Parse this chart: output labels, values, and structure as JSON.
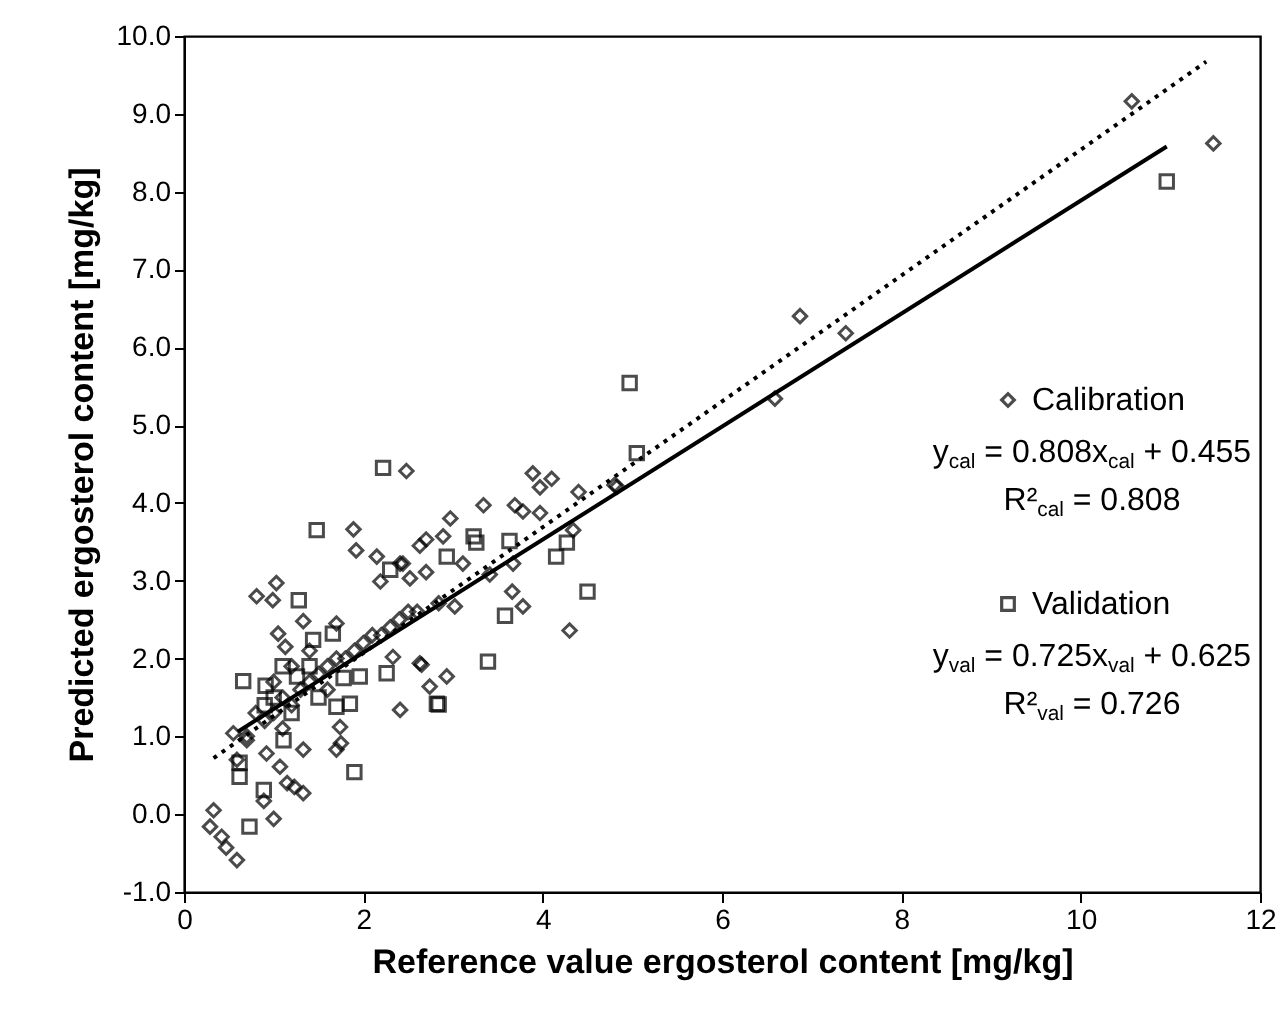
{
  "chart_data": {
    "type": "scatter",
    "xlabel": "Reference value ergosterol content [mg/kg]",
    "ylabel": "Predicted ergosterol content [mg/kg]",
    "xlim": [
      0,
      12
    ],
    "xticks": [
      0,
      2,
      4,
      6,
      8,
      10,
      12
    ],
    "ylim": [
      -1,
      10
    ],
    "yticks": [
      {
        "value": -1,
        "label": "-1.0"
      },
      {
        "value": 0,
        "label": "0.0"
      },
      {
        "value": 1,
        "label": "1.0"
      },
      {
        "value": 2,
        "label": "2.0"
      },
      {
        "value": 3,
        "label": "3.0"
      },
      {
        "value": 4,
        "label": "4.0"
      },
      {
        "value": 5,
        "label": "5.0"
      },
      {
        "value": 6,
        "label": "6.0"
      },
      {
        "value": 7,
        "label": "7.0"
      },
      {
        "value": 8,
        "label": "8.0"
      },
      {
        "value": 9,
        "label": "9.0"
      },
      {
        "value": 10,
        "label": "10.0"
      }
    ],
    "grid": false,
    "legend": "right",
    "annotations": [
      "y$_{cal}$ = 0.808x$_{cal}$ + 0.455",
      "R²$_{cal}$ = 0.808",
      "y$_{val}$ = 0.725x$_{val}$ + 0.625",
      "R²$_{val}$ = 0.726"
    ],
    "series": [
      {
        "name": "Calibration",
        "type": "scatter",
        "marker": "diamond",
        "color": "#000000",
        "x": [
          2.48,
          1.89,
          1.92,
          2.15,
          2.63,
          2.19,
          2.41,
          0.81,
          1.03,
          0.99,
          1.05,
          1.13,
          1.33,
          1.7,
          2.33,
          2.65,
          2.74,
          2.41,
          1.74,
          1.33,
          0.55,
          0.59,
          3.34,
          3.89,
          4.1,
          3.97,
          4.4,
          4.8,
          3.69,
          3.78,
          3.97,
          2.97,
          2.7,
          2.89,
          3.11,
          3.67,
          3.41,
          2.44,
          2.7,
          2.52,
          4.34,
          3.66,
          3.78,
          4.3,
          3.02,
          2.84,
          2.63,
          2.93,
          1.75,
          0.33,
          0.29,
          0.42,
          0.47,
          0.59,
          1.0,
          0.89,
          1.15,
          1.23,
          1.33,
          1.7,
          0.7,
          0.92,
          1.07,
          10.57,
          11.48,
          6.87,
          7.38,
          6.59,
          4.83,
          0.9,
          1.0,
          1.1,
          1.2,
          1.3,
          1.4,
          1.5,
          1.6,
          1.7,
          1.8,
          1.9,
          2.0,
          2.1,
          2.2,
          2.3,
          2.4,
          2.5,
          2.6,
          1.0,
          1.2,
          1.4,
          0.8,
          0.7,
          1.6,
          1.1
        ],
        "values": [
          4.41,
          3.66,
          3.39,
          3.31,
          3.45,
          2.99,
          3.22,
          2.8,
          2.97,
          2.75,
          2.32,
          2.15,
          2.48,
          2.45,
          2.02,
          1.92,
          1.64,
          1.34,
          1.12,
          0.83,
          1.04,
          0.7,
          3.97,
          4.38,
          4.31,
          4.2,
          4.14,
          4.23,
          3.97,
          3.89,
          3.87,
          3.8,
          3.53,
          3.57,
          3.22,
          3.22,
          3.08,
          3.22,
          3.11,
          3.03,
          3.65,
          2.86,
          2.67,
          2.36,
          2.67,
          2.71,
          1.94,
          1.77,
          0.91,
          0.05,
          -0.16,
          -0.29,
          -0.43,
          -0.59,
          -0.06,
          0.17,
          0.4,
          0.35,
          0.27,
          0.83,
          0.95,
          0.78,
          0.61,
          9.16,
          8.62,
          6.4,
          6.18,
          5.34,
          4.21,
          1.2,
          1.3,
          1.5,
          1.4,
          1.6,
          1.7,
          1.8,
          1.9,
          2.0,
          2.0,
          2.1,
          2.2,
          2.3,
          2.3,
          2.4,
          2.5,
          2.6,
          2.6,
          1.7,
          1.9,
          2.1,
          1.3,
          1.0,
          1.6,
          1.1
        ]
      },
      {
        "name": "Validation",
        "type": "scatter",
        "marker": "square",
        "color": "#000000",
        "x": [
          2.22,
          1.48,
          1.28,
          0.66,
          0.91,
          1.78,
          1.96,
          2.26,
          1.85,
          1.7,
          1.9,
          2.82,
          1.44,
          1.66,
          1.26,
          0.62,
          5.05,
          4.97,
          10.96,
          3.23,
          3.26,
          3.63,
          4.15,
          4.27,
          2.93,
          2.3,
          4.5,
          3.58,
          3.39,
          2.84,
          0.62,
          0.89,
          0.73,
          1.11,
          1.0,
          1.2,
          1.4,
          1.5,
          0.9,
          1.1
        ],
        "values": [
          4.45,
          3.65,
          2.75,
          1.71,
          1.65,
          1.75,
          1.77,
          1.81,
          1.42,
          1.38,
          0.54,
          1.42,
          2.24,
          2.32,
          1.77,
          0.66,
          4.64,
          5.54,
          8.13,
          3.57,
          3.49,
          3.51,
          3.31,
          3.49,
          3.31,
          3.14,
          2.86,
          2.55,
          1.96,
          1.41,
          0.48,
          0.31,
          -0.16,
          0.95,
          1.5,
          1.3,
          1.9,
          1.5,
          1.4,
          1.9
        ]
      },
      {
        "type": "line",
        "line_style": "dotted",
        "color": "#000000",
        "x": [
          0.33,
          11.4
        ],
        "values": [
          0.72,
          9.67
        ]
      },
      {
        "type": "line",
        "line_style": "solid",
        "color": "#000000",
        "x": [
          0.6,
          10.96
        ],
        "values": [
          1.06,
          8.58
        ]
      }
    ]
  }
}
